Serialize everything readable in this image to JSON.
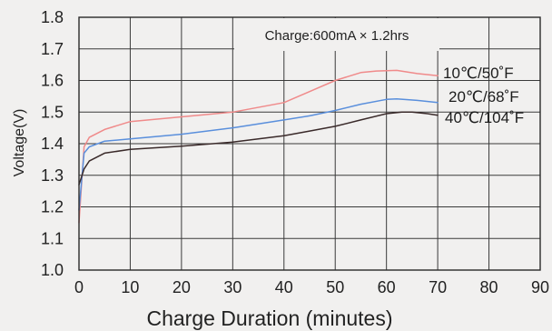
{
  "chart_data": {
    "type": "line",
    "title": "",
    "xlabel": "Charge Duration (minutes)",
    "ylabel": "Voltage(V)",
    "xlim": [
      0,
      90
    ],
    "ylim": [
      1.0,
      1.8
    ],
    "x_ticks": [
      0,
      10,
      20,
      30,
      40,
      50,
      60,
      70,
      80,
      90
    ],
    "y_ticks": [
      1.0,
      1.1,
      1.2,
      1.3,
      1.4,
      1.5,
      1.6,
      1.7,
      1.8
    ],
    "x_tick_labels": [
      "0",
      "10",
      "20",
      "30",
      "40",
      "50",
      "60",
      "70",
      "80",
      "90"
    ],
    "y_tick_labels": [
      "1.0",
      "1.1",
      "1.2",
      "1.3",
      "1.4",
      "1.5",
      "1.6",
      "1.7",
      "1.8"
    ],
    "grid": true,
    "annotation": "Charge:600mA × 1.2hrs",
    "series": [
      {
        "name": "10℃/50˚F",
        "color": "#f08a8a",
        "x": [
          0,
          1,
          2,
          5,
          10,
          20,
          30,
          40,
          45,
          50,
          55,
          58,
          62,
          66,
          70
        ],
        "y": [
          1.15,
          1.39,
          1.42,
          1.445,
          1.47,
          1.485,
          1.5,
          1.53,
          1.565,
          1.6,
          1.625,
          1.63,
          1.632,
          1.622,
          1.615
        ]
      },
      {
        "name": "20℃/68˚F",
        "color": "#5a8fdc",
        "x": [
          0,
          1,
          2,
          5,
          10,
          20,
          30,
          40,
          45,
          50,
          55,
          60,
          62,
          66,
          70
        ],
        "y": [
          1.19,
          1.37,
          1.39,
          1.408,
          1.415,
          1.43,
          1.45,
          1.475,
          1.488,
          1.505,
          1.525,
          1.54,
          1.542,
          1.537,
          1.53
        ]
      },
      {
        "name": "40℃/104˚F",
        "color": "#3a2a2a",
        "x": [
          0,
          1,
          2,
          5,
          10,
          20,
          30,
          40,
          45,
          50,
          55,
          60,
          63,
          65,
          68,
          70
        ],
        "y": [
          1.27,
          1.32,
          1.345,
          1.37,
          1.382,
          1.392,
          1.405,
          1.425,
          1.44,
          1.455,
          1.475,
          1.495,
          1.5,
          1.5,
          1.495,
          1.49
        ]
      }
    ]
  }
}
